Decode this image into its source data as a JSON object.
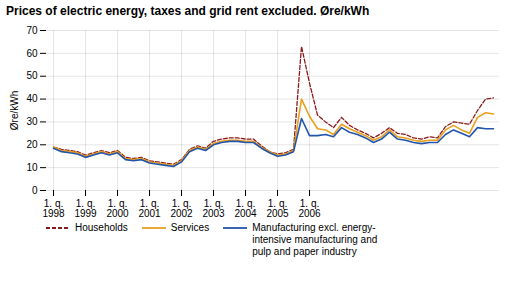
{
  "chart_data": {
    "type": "line",
    "title": "Prices of electric energy, taxes and grid rent excluded. Øre/kWh",
    "ylabel": "Øre/kWh",
    "ylim": [
      0,
      70
    ],
    "yticks": [
      0,
      10,
      20,
      30,
      40,
      50,
      60,
      70
    ],
    "grid": true,
    "categories": [
      "1. q.\n1998",
      null,
      null,
      null,
      "1. q.\n1999",
      null,
      null,
      null,
      "1. q.\n2000",
      null,
      null,
      null,
      "1. q.\n2001",
      null,
      null,
      null,
      "1. q.\n2002",
      null,
      null,
      null,
      "1. q.\n2003",
      null,
      null,
      null,
      "1. q.\n2004",
      null,
      null,
      null,
      "1. q.\n2005",
      null,
      null,
      null,
      "1. q.\n2006",
      null,
      null,
      null,
      null,
      null,
      null,
      null,
      null,
      null,
      null,
      null,
      null,
      null,
      null,
      null,
      null,
      null,
      null,
      null,
      null,
      null,
      null,
      null
    ],
    "series": [
      {
        "name": "Households",
        "color": "#8b1a1a",
        "line_style": "dashed",
        "values": [
          19.0,
          18.0,
          17.5,
          17.0,
          15.5,
          16.5,
          17.5,
          16.5,
          17.5,
          14.5,
          14.0,
          14.5,
          13.0,
          12.5,
          12.0,
          11.5,
          13.5,
          18.0,
          19.5,
          18.5,
          21.5,
          22.5,
          23.0,
          23.0,
          22.5,
          22.5,
          19.5,
          17.0,
          16.0,
          16.5,
          18.0,
          63.0,
          47.0,
          33.0,
          30.0,
          27.5,
          32.0,
          28.5,
          26.5,
          25.0,
          23.0,
          25.0,
          27.5,
          25.0,
          24.5,
          23.0,
          22.5,
          23.5,
          23.0,
          28.0,
          30.0,
          29.5,
          29.0,
          35.0,
          40.0,
          40.5
        ]
      },
      {
        "name": "Services",
        "color": "#e8a020",
        "line_style": "solid",
        "values": [
          19.0,
          17.5,
          17.0,
          16.5,
          15.0,
          16.0,
          17.0,
          16.0,
          17.0,
          14.0,
          13.5,
          14.0,
          12.5,
          12.0,
          11.5,
          11.0,
          13.0,
          17.5,
          19.0,
          18.0,
          20.5,
          21.5,
          22.0,
          22.0,
          21.5,
          21.5,
          19.0,
          17.0,
          15.5,
          16.0,
          17.5,
          40.0,
          32.5,
          27.0,
          26.5,
          24.5,
          29.0,
          27.0,
          25.5,
          24.0,
          22.0,
          23.5,
          26.5,
          23.5,
          23.0,
          22.0,
          21.5,
          22.0,
          22.0,
          26.5,
          28.5,
          26.5,
          25.0,
          32.0,
          34.0,
          33.5
        ]
      },
      {
        "name": "Manufacturing excl. energy-\nintensive manufacturing and\npulp and paper industry",
        "color": "#2255aa",
        "line_style": "solid",
        "values": [
          18.5,
          17.0,
          16.5,
          16.0,
          14.5,
          15.5,
          16.5,
          15.5,
          16.5,
          13.5,
          13.0,
          13.5,
          12.0,
          11.5,
          11.0,
          10.5,
          12.5,
          17.0,
          18.5,
          17.5,
          20.0,
          21.0,
          21.5,
          21.5,
          21.0,
          21.0,
          18.5,
          16.5,
          15.0,
          15.5,
          17.0,
          31.5,
          24.0,
          24.0,
          24.5,
          23.5,
          27.5,
          25.5,
          24.5,
          23.0,
          21.0,
          22.5,
          25.5,
          22.5,
          22.0,
          21.0,
          20.5,
          21.0,
          21.0,
          24.5,
          26.5,
          25.0,
          23.5,
          27.5,
          27.0,
          27.0
        ]
      }
    ]
  }
}
